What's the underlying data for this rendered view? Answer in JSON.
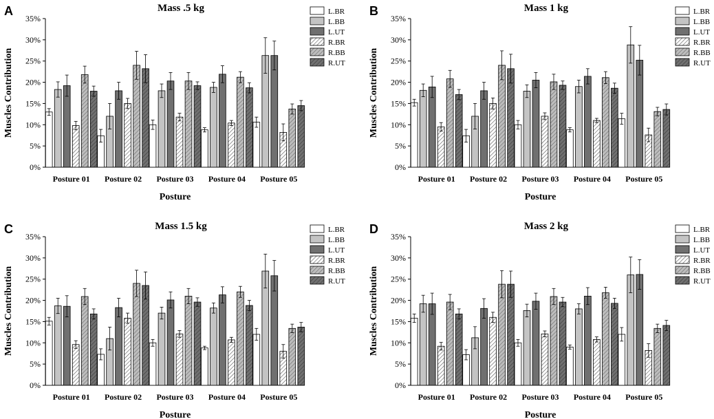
{
  "chart_data": [
    {
      "type": "bar",
      "panel": "A",
      "title": "Mass .5 kg",
      "xlabel": "Posture",
      "ylabel": "Muscles Contribution",
      "ylim": [
        0,
        35
      ],
      "yticks": [
        "0%",
        "5%",
        "10%",
        "15%",
        "20%",
        "25%",
        "30%",
        "35%"
      ],
      "categories": [
        "Posture 01",
        "Posture 02",
        "Posture 03",
        "Posture 04",
        "Posture 05"
      ],
      "legend_position": "top-right",
      "series": [
        {
          "name": "L.BR",
          "values": [
            13.0,
            7.4,
            10.0,
            8.8,
            10.6
          ],
          "errors": [
            0.8,
            1.5,
            1.1,
            0.5,
            1.2
          ]
        },
        {
          "name": "L.BB",
          "values": [
            18.3,
            12.0,
            18.0,
            18.8,
            26.3
          ],
          "errors": [
            1.8,
            3.0,
            1.6,
            1.2,
            4.2
          ]
        },
        {
          "name": "L.UT",
          "values": [
            19.2,
            18.0,
            20.3,
            21.9,
            26.3
          ],
          "errors": [
            2.5,
            2.0,
            2.0,
            2.0,
            3.4
          ]
        },
        {
          "name": "R.BR",
          "values": [
            9.8,
            15.0,
            11.8,
            10.4,
            8.2
          ],
          "errors": [
            1.0,
            1.2,
            0.9,
            0.6,
            2.0
          ]
        },
        {
          "name": "R.BB",
          "values": [
            21.8,
            24.0,
            20.3,
            21.2,
            13.7
          ],
          "errors": [
            2.0,
            3.3,
            2.0,
            1.3,
            1.2
          ]
        },
        {
          "name": "R.UT",
          "values": [
            17.9,
            23.2,
            19.2,
            18.7,
            14.5
          ],
          "errors": [
            1.2,
            3.3,
            0.9,
            1.2,
            1.2
          ]
        }
      ]
    },
    {
      "type": "bar",
      "panel": "B",
      "title": "Mass 1 kg",
      "xlabel": "Posture",
      "ylabel": "Muscles Contribution",
      "ylim": [
        0,
        35
      ],
      "yticks": [
        "0%",
        "5%",
        "10%",
        "15%",
        "20%",
        "25%",
        "30%",
        "35%"
      ],
      "categories": [
        "Posture 01",
        "Posture 02",
        "Posture 03",
        "Posture 04",
        "Posture 05"
      ],
      "legend_position": "top-right",
      "series": [
        {
          "name": "L.BR",
          "values": [
            15.2,
            7.4,
            10.0,
            8.8,
            11.4
          ],
          "errors": [
            0.8,
            1.5,
            1.0,
            0.5,
            1.3
          ]
        },
        {
          "name": "L.BB",
          "values": [
            18.1,
            12.0,
            17.9,
            19.0,
            28.8
          ],
          "errors": [
            1.5,
            3.0,
            1.5,
            1.5,
            4.3
          ]
        },
        {
          "name": "L.UT",
          "values": [
            18.9,
            18.0,
            20.5,
            21.4,
            25.2
          ],
          "errors": [
            2.5,
            2.0,
            1.8,
            1.8,
            3.5
          ]
        },
        {
          "name": "R.BR",
          "values": [
            9.5,
            15.0,
            12.0,
            11.0,
            7.6
          ],
          "errors": [
            1.0,
            1.3,
            0.8,
            0.5,
            1.6
          ]
        },
        {
          "name": "R.BB",
          "values": [
            20.8,
            24.0,
            20.1,
            21.1,
            13.1
          ],
          "errors": [
            2.0,
            3.4,
            1.8,
            1.4,
            1.0
          ]
        },
        {
          "name": "R.UT",
          "values": [
            17.1,
            23.2,
            19.3,
            18.6,
            13.6
          ],
          "errors": [
            1.2,
            3.4,
            1.0,
            1.2,
            1.3
          ]
        }
      ]
    },
    {
      "type": "bar",
      "panel": "C",
      "title": "Mass 1.5 kg",
      "xlabel": "Posture",
      "ylabel": "Muscles Contribution",
      "ylim": [
        0,
        35
      ],
      "yticks": [
        "0%",
        "5%",
        "10%",
        "15%",
        "20%",
        "25%",
        "30%",
        "35%"
      ],
      "categories": [
        "Posture 01",
        "Posture 02",
        "Posture 03",
        "Posture 04",
        "Posture 05"
      ],
      "legend_position": "top-right",
      "series": [
        {
          "name": "L.BR",
          "values": [
            15.1,
            7.3,
            10.0,
            8.8,
            12.0
          ],
          "errors": [
            0.9,
            1.3,
            0.8,
            0.4,
            1.4
          ]
        },
        {
          "name": "L.BB",
          "values": [
            18.7,
            11.0,
            17.0,
            18.2,
            26.9
          ],
          "errors": [
            1.8,
            2.7,
            1.4,
            1.2,
            4.0
          ]
        },
        {
          "name": "L.UT",
          "values": [
            18.6,
            18.3,
            20.1,
            21.3,
            25.8
          ],
          "errors": [
            2.5,
            2.2,
            1.9,
            1.9,
            3.6
          ]
        },
        {
          "name": "R.BR",
          "values": [
            9.6,
            15.8,
            12.1,
            10.7,
            8.0
          ],
          "errors": [
            0.9,
            1.2,
            0.8,
            0.6,
            1.6
          ]
        },
        {
          "name": "R.BB",
          "values": [
            20.9,
            24.0,
            21.0,
            22.0,
            13.4
          ],
          "errors": [
            1.9,
            3.1,
            1.8,
            1.3,
            1.0
          ]
        },
        {
          "name": "R.UT",
          "values": [
            16.8,
            23.5,
            19.6,
            18.8,
            13.7
          ],
          "errors": [
            1.2,
            3.2,
            1.0,
            1.2,
            1.1
          ]
        }
      ]
    },
    {
      "type": "bar",
      "panel": "D",
      "title": "Mass 2 kg",
      "xlabel": "Posture",
      "ylabel": "Muscles Contribution",
      "ylim": [
        0,
        35
      ],
      "yticks": [
        "0%",
        "5%",
        "10%",
        "15%",
        "20%",
        "25%",
        "30%",
        "35%"
      ],
      "categories": [
        "Posture 01",
        "Posture 02",
        "Posture 03",
        "Posture 04",
        "Posture 05"
      ],
      "legend_position": "top-right",
      "series": [
        {
          "name": "L.BR",
          "values": [
            15.8,
            7.2,
            10.0,
            9.0,
            12.0
          ],
          "errors": [
            1.0,
            1.2,
            0.8,
            0.5,
            1.6
          ]
        },
        {
          "name": "L.BB",
          "values": [
            19.2,
            11.2,
            17.6,
            18.0,
            26.0
          ],
          "errors": [
            2.0,
            2.6,
            1.5,
            1.2,
            4.2
          ]
        },
        {
          "name": "L.UT",
          "values": [
            19.2,
            18.1,
            19.8,
            21.0,
            26.1
          ],
          "errors": [
            2.5,
            2.3,
            1.9,
            2.0,
            3.5
          ]
        },
        {
          "name": "R.BR",
          "values": [
            9.2,
            16.0,
            12.1,
            10.8,
            8.2
          ],
          "errors": [
            0.9,
            1.2,
            0.7,
            0.6,
            1.6
          ]
        },
        {
          "name": "R.BB",
          "values": [
            19.6,
            23.8,
            20.9,
            21.8,
            13.4
          ],
          "errors": [
            1.8,
            3.2,
            1.9,
            1.3,
            1.0
          ]
        },
        {
          "name": "R.UT",
          "values": [
            16.8,
            23.8,
            19.6,
            19.3,
            14.1
          ],
          "errors": [
            1.2,
            3.1,
            1.1,
            1.2,
            1.2
          ]
        }
      ]
    }
  ]
}
